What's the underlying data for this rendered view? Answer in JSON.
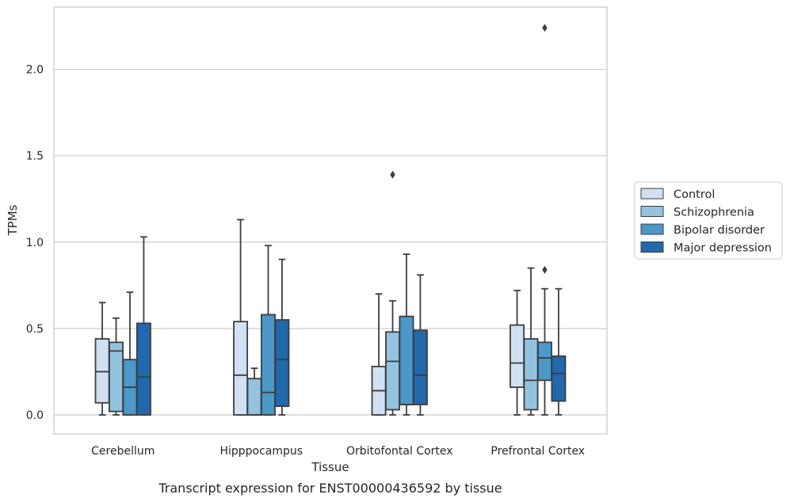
{
  "chart_data": {
    "type": "box",
    "title": "",
    "caption": "Transcript expression for ENST00000436592 by tissue",
    "xlabel": "Tissue",
    "ylabel": "TPMs",
    "ylim": [
      -0.11,
      2.36
    ],
    "yticks": [
      0.0,
      0.5,
      1.0,
      1.5,
      2.0
    ],
    "ytick_labels": [
      "0.0",
      "0.5",
      "1.0",
      "1.5",
      "2.0"
    ],
    "grid": "horizontal",
    "legend_position": "right",
    "categories": [
      "Cerebellum",
      "Hipppocampus",
      "Orbitofontal Cortex",
      "Prefrontal Cortex"
    ],
    "series": [
      {
        "name": "Control",
        "color": "#cfe1f2",
        "boxes": [
          {
            "whislo": 0.0,
            "q1": 0.07,
            "med": 0.25,
            "q3": 0.44,
            "whishi": 0.65,
            "fliers": []
          },
          {
            "whislo": 0.0,
            "q1": 0.0,
            "med": 0.23,
            "q3": 0.54,
            "whishi": 1.13,
            "fliers": []
          },
          {
            "whislo": 0.0,
            "q1": 0.0,
            "med": 0.14,
            "q3": 0.28,
            "whishi": 0.7,
            "fliers": []
          },
          {
            "whislo": 0.0,
            "q1": 0.16,
            "med": 0.3,
            "q3": 0.52,
            "whishi": 0.72,
            "fliers": []
          }
        ]
      },
      {
        "name": "Schizophrenia",
        "color": "#93c3df",
        "boxes": [
          {
            "whislo": 0.0,
            "q1": 0.02,
            "med": 0.37,
            "q3": 0.42,
            "whishi": 0.56,
            "fliers": []
          },
          {
            "whislo": 0.0,
            "q1": 0.0,
            "med": 0.0,
            "q3": 0.21,
            "whishi": 0.27,
            "fliers": []
          },
          {
            "whislo": 0.0,
            "q1": 0.03,
            "med": 0.31,
            "q3": 0.48,
            "whishi": 0.66,
            "fliers": [
              1.39
            ]
          },
          {
            "whislo": 0.0,
            "q1": 0.03,
            "med": 0.2,
            "q3": 0.44,
            "whishi": 0.85,
            "fliers": []
          }
        ]
      },
      {
        "name": "Bipolar disorder",
        "color": "#4b98c9",
        "boxes": [
          {
            "whislo": 0.0,
            "q1": 0.0,
            "med": 0.16,
            "q3": 0.32,
            "whishi": 0.71,
            "fliers": []
          },
          {
            "whislo": 0.0,
            "q1": 0.0,
            "med": 0.13,
            "q3": 0.58,
            "whishi": 0.98,
            "fliers": []
          },
          {
            "whislo": 0.0,
            "q1": 0.06,
            "med": 0.06,
            "q3": 0.57,
            "whishi": 0.93,
            "fliers": []
          },
          {
            "whislo": 0.0,
            "q1": 0.2,
            "med": 0.33,
            "q3": 0.42,
            "whishi": 0.73,
            "fliers": [
              0.84,
              2.24
            ]
          }
        ]
      },
      {
        "name": "Major depression",
        "color": "#2268ad",
        "boxes": [
          {
            "whislo": 0.0,
            "q1": 0.0,
            "med": 0.22,
            "q3": 0.53,
            "whishi": 1.03,
            "fliers": []
          },
          {
            "whislo": 0.0,
            "q1": 0.05,
            "med": 0.32,
            "q3": 0.55,
            "whishi": 0.9,
            "fliers": []
          },
          {
            "whislo": 0.0,
            "q1": 0.06,
            "med": 0.23,
            "q3": 0.49,
            "whishi": 0.81,
            "fliers": []
          },
          {
            "whislo": 0.0,
            "q1": 0.08,
            "med": 0.24,
            "q3": 0.34,
            "whishi": 0.73,
            "fliers": []
          }
        ]
      }
    ]
  }
}
